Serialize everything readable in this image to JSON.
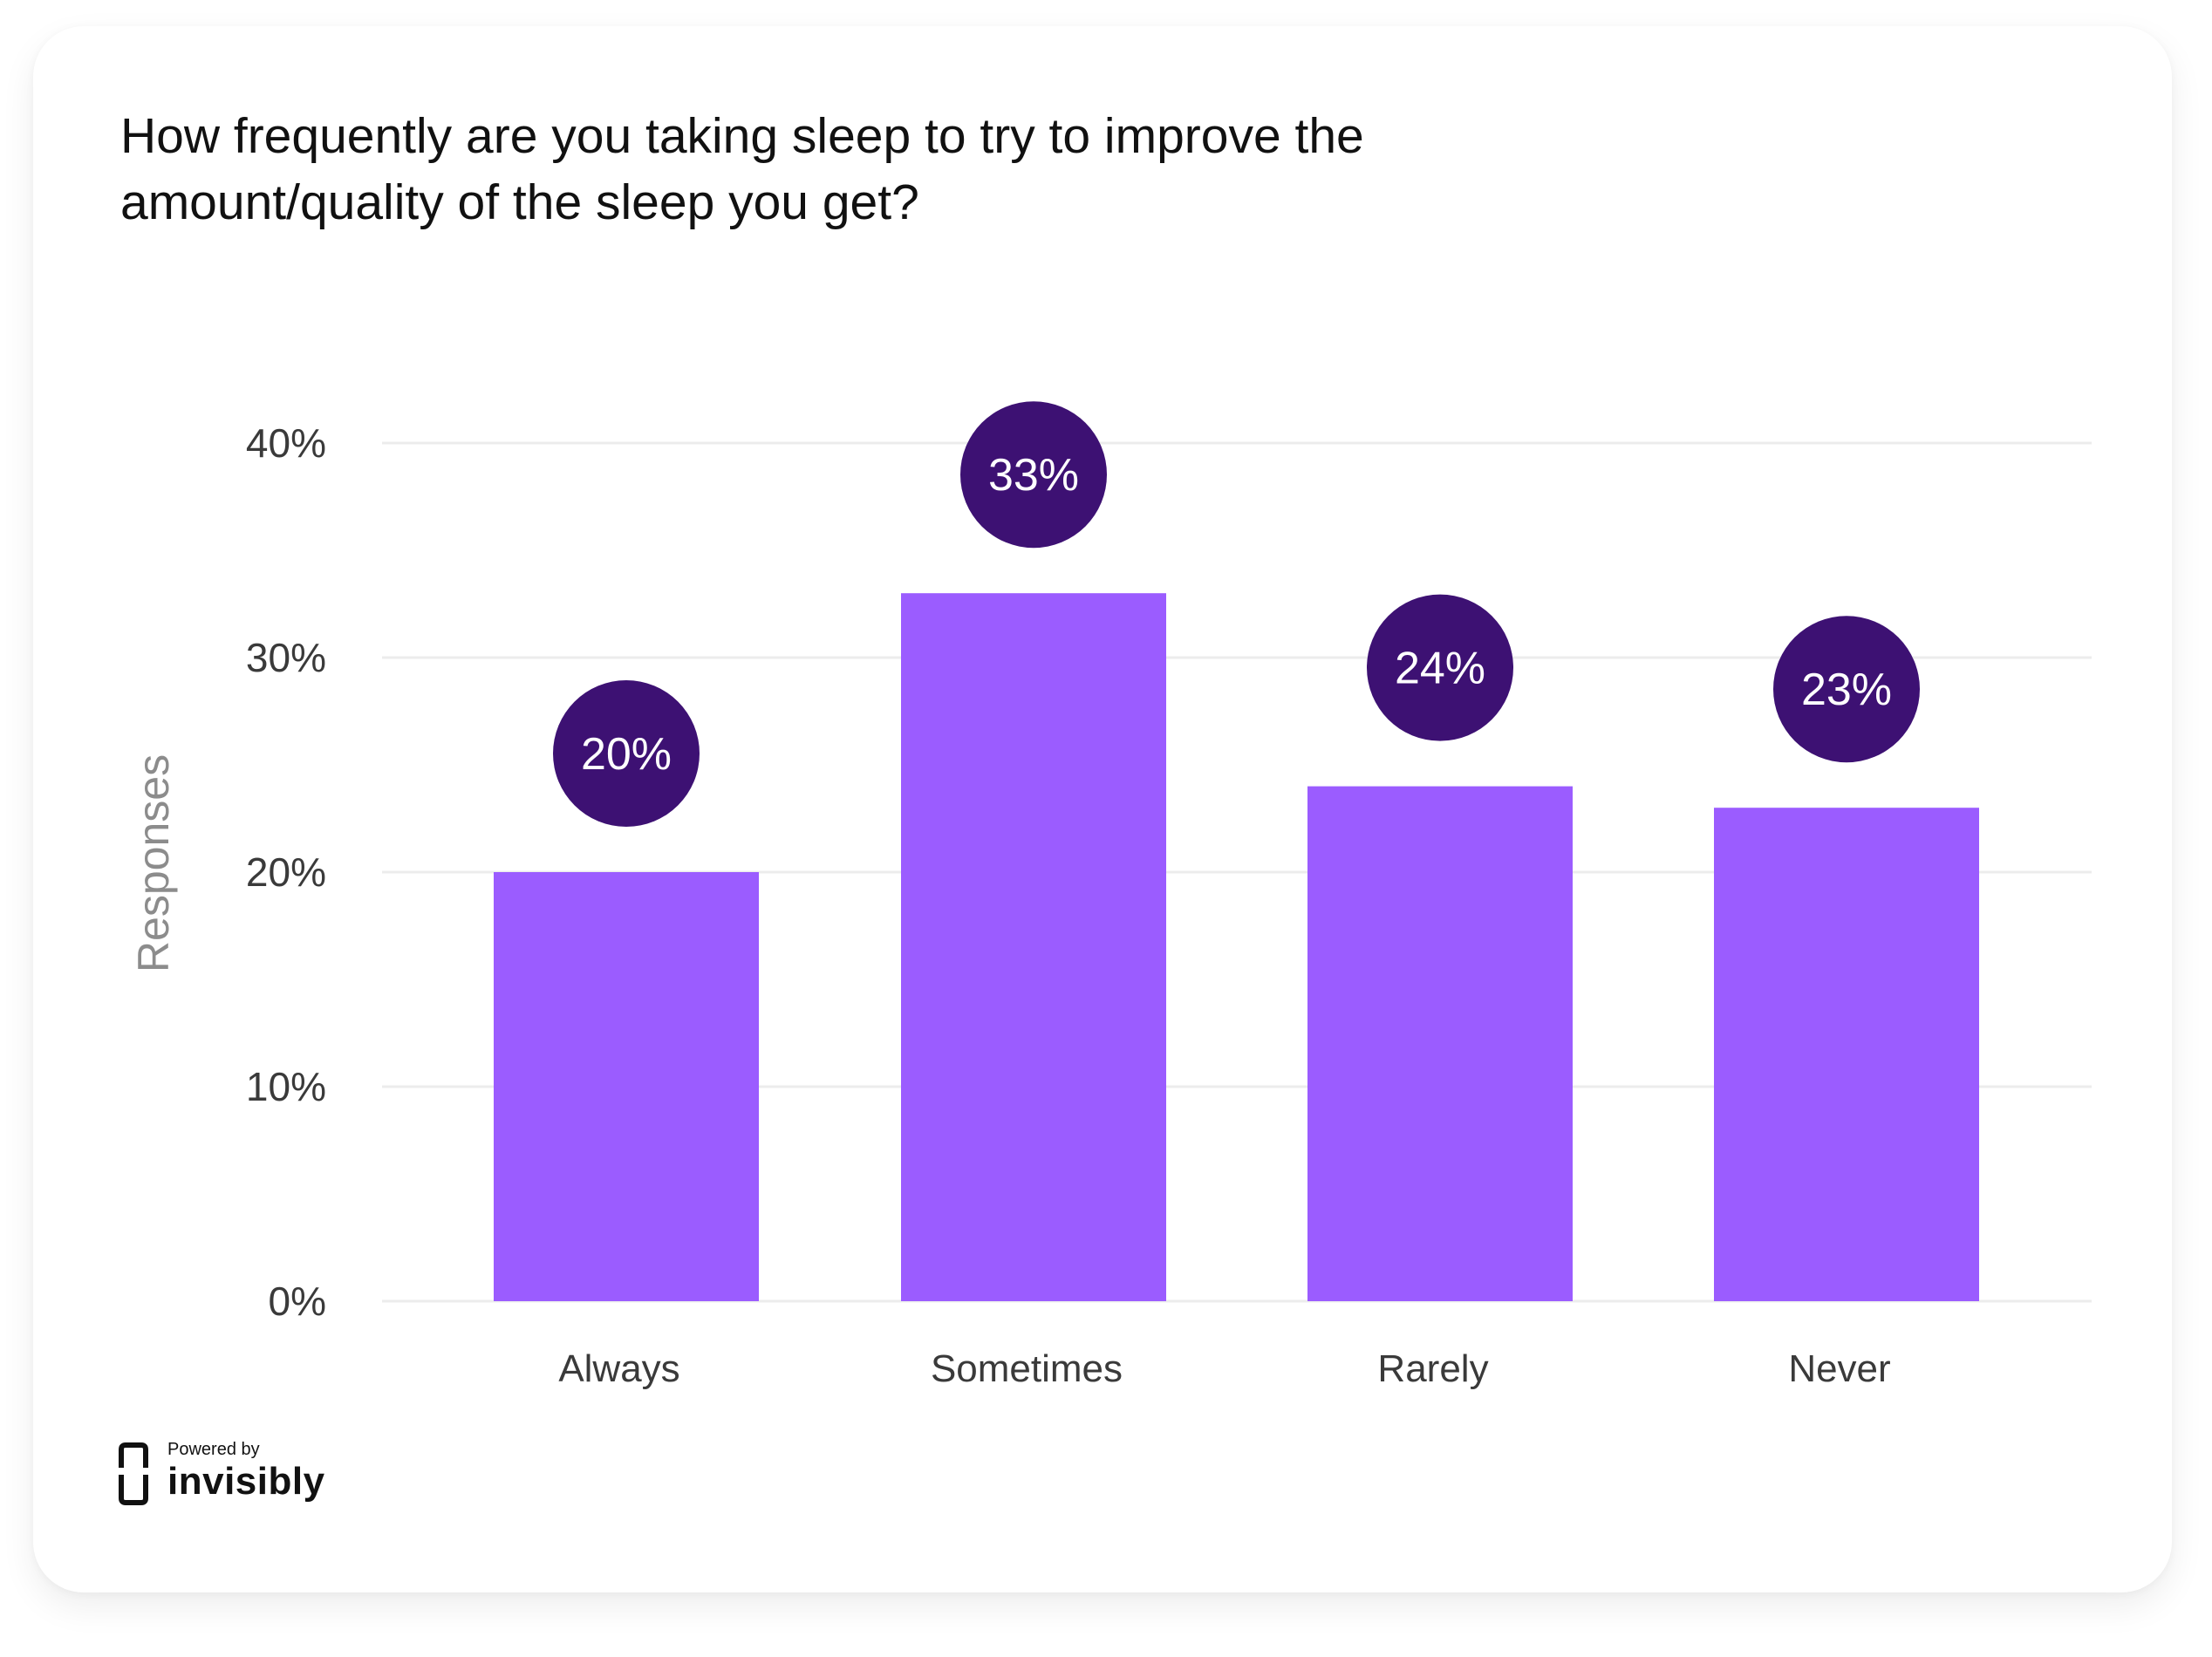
{
  "title": "How frequently are you taking sleep to try to improve the amount/quality of the sleep you get?",
  "colors": {
    "bar": "#9b5cff",
    "bubble": "#3d1173",
    "bubble_text": "#ffffff",
    "grid": "#ececec",
    "tick_text": "#3a3a3a",
    "ylabel_text": "#8c8c8c"
  },
  "chart_data": {
    "type": "bar",
    "categories": [
      "Always",
      "Sometimes",
      "Rarely",
      "Never"
    ],
    "values": [
      20,
      33,
      24,
      23
    ],
    "data_labels": [
      "20%",
      "33%",
      "24%",
      "23%"
    ],
    "ylabel": "Responses",
    "xlabel": "",
    "ylim": [
      0,
      40
    ],
    "yticks": [
      0,
      10,
      20,
      30,
      40
    ],
    "ytick_labels": [
      "0%",
      "10%",
      "20%",
      "30%",
      "40%"
    ],
    "grid": true
  },
  "branding": {
    "powered_by": "Powered by",
    "name": "invisibly"
  }
}
